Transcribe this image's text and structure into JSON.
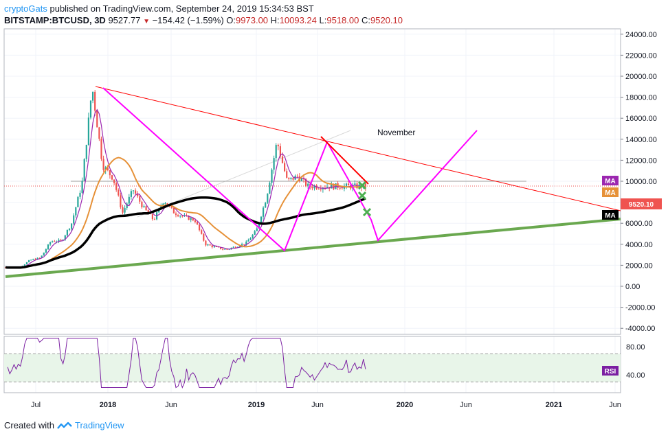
{
  "header": {
    "author": "cryptoGats",
    "published": "published on TradingView.com, September 24, 2019 15:34:53 BST",
    "symbol": "BITSTAMP:BTCUSD, 3D",
    "last": "9527.77",
    "change": "−154.42 (−1.59%)",
    "o_label": "O:",
    "o_value": "9973.00",
    "h_label": "H:",
    "h_value": "10093.24",
    "l_label": "L:",
    "l_value": "9518.00",
    "c_label": "C:",
    "c_value": "9520.10"
  },
  "footer": {
    "created_with": "Created with",
    "brand": "TradingView"
  },
  "colors": {
    "price_line": "#2196f3",
    "down_candle": "#ef5350",
    "up_candle": "#26a69a",
    "trend_red": "#ff0000",
    "magenta": "#ff00ff",
    "green_trend": "#6aa84f",
    "ma_black": "#000000",
    "ma_orange": "#e69138",
    "ma_purple": "#9c27b0",
    "rsi": "#7b1fa2",
    "rsi_band": "#e8f5e9"
  },
  "chart_data": {
    "type": "candlestick",
    "price_axis": {
      "ticks": [
        "24000.00",
        "22000.00",
        "20000.00",
        "18000.00",
        "16000.00",
        "14000.00",
        "12000.00",
        "10000.00",
        "8000.00",
        "6000.00",
        "4000.00",
        "2000.00",
        "0.00",
        "-2000.00",
        "-4000.00"
      ],
      "ylim": [
        -4000,
        24000
      ]
    },
    "time_axis": {
      "ticks": [
        "Jul",
        "2018",
        "Jun",
        "2019",
        "Jun",
        "2020",
        "Jun",
        "2021",
        "Jun"
      ]
    },
    "rsi_axis": {
      "ticks": [
        "80.00",
        "40.00"
      ],
      "band": [
        30,
        70
      ]
    },
    "price_label": "9520.10",
    "ma_tags": [
      "MA",
      "MA",
      "MA"
    ],
    "rsi_tag": "RSI",
    "annotations": [
      "November"
    ],
    "price_series_approx": [
      [
        "2017-05",
        1800
      ],
      [
        "2017-06",
        2500
      ],
      [
        "2017-07",
        2700
      ],
      [
        "2017-08",
        4300
      ],
      [
        "2017-09",
        4300
      ],
      [
        "2017-10",
        6000
      ],
      [
        "2017-11",
        9800
      ],
      [
        "2017-12",
        19000
      ],
      [
        "2018-01",
        11500
      ],
      [
        "2018-02",
        10300
      ],
      [
        "2018-03",
        7000
      ],
      [
        "2018-04",
        9200
      ],
      [
        "2018-05",
        7500
      ],
      [
        "2018-06",
        6300
      ],
      [
        "2018-07",
        8200
      ],
      [
        "2018-08",
        7000
      ],
      [
        "2018-09",
        6600
      ],
      [
        "2018-10",
        6300
      ],
      [
        "2018-11",
        4000
      ],
      [
        "2018-12",
        3700
      ],
      [
        "2019-01",
        3500
      ],
      [
        "2019-02",
        3800
      ],
      [
        "2019-03",
        4100
      ],
      [
        "2019-04",
        5300
      ],
      [
        "2019-05",
        8500
      ],
      [
        "2019-06",
        13800
      ],
      [
        "2019-07",
        10000
      ],
      [
        "2019-08",
        10500
      ],
      [
        "2019-09",
        9520
      ]
    ]
  }
}
